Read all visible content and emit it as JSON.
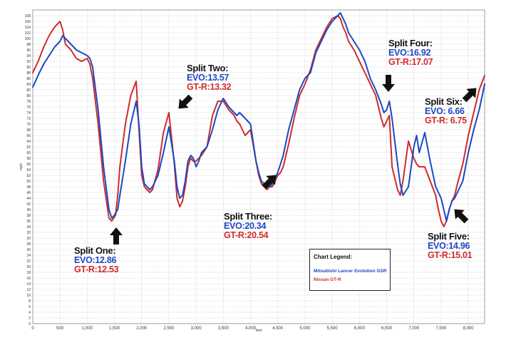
{
  "chart_data": {
    "type": "line",
    "title": "",
    "xlabel": "feet",
    "ylabel": "mph",
    "xlim": [
      0,
      8300
    ],
    "ylim": [
      0,
      110
    ],
    "x_ticks": [
      0,
      500,
      1000,
      1500,
      2000,
      2500,
      3000,
      3500,
      4000,
      4500,
      5000,
      5500,
      6000,
      6500,
      7000,
      7500,
      8000
    ],
    "x_tick_labels": [
      "0",
      "500",
      "1,000",
      "1,500",
      "2,000",
      "2,500",
      "3,000",
      "3,500",
      "4,000",
      "4,500",
      "5,000",
      "5,500",
      "6,000",
      "6,500",
      "7,000",
      "7,500",
      "8,000"
    ],
    "y_ticks": [
      0,
      2,
      4,
      6,
      8,
      10,
      12,
      14,
      16,
      18,
      20,
      22,
      24,
      26,
      28,
      30,
      32,
      34,
      36,
      38,
      40,
      42,
      44,
      46,
      48,
      50,
      52,
      54,
      56,
      58,
      60,
      62,
      64,
      66,
      68,
      70,
      72,
      74,
      76,
      78,
      80,
      82,
      84,
      86,
      88,
      90,
      92,
      94,
      96,
      98,
      100,
      102,
      104,
      106,
      108
    ],
    "grid": true,
    "series": [
      {
        "name": "Mitsubishi Lancer Evolution GSR",
        "color": "#1b48c4",
        "x": [
          0,
          50,
          120,
          200,
          300,
          400,
          500,
          550,
          600,
          700,
          800,
          900,
          1000,
          1050,
          1100,
          1200,
          1300,
          1400,
          1450,
          1500,
          1560,
          1600,
          1700,
          1800,
          1900,
          1950,
          2000,
          2050,
          2100,
          2150,
          2200,
          2300,
          2400,
          2500,
          2600,
          2650,
          2700,
          2750,
          2800,
          2850,
          2900,
          2950,
          3000,
          3050,
          3100,
          3200,
          3300,
          3400,
          3500,
          3600,
          3700,
          3750,
          3800,
          3900,
          4000,
          4100,
          4150,
          4200,
          4300,
          4350,
          4400,
          4450,
          4500,
          4550,
          4600,
          4700,
          4800,
          4900,
          5000,
          5100,
          5200,
          5300,
          5400,
          5500,
          5600,
          5650,
          5700,
          5750,
          5800,
          5900,
          6000,
          6100,
          6200,
          6300,
          6400,
          6450,
          6500,
          6550,
          6600,
          6700,
          6750,
          6800,
          6900,
          7000,
          7050,
          7100,
          7200,
          7300,
          7400,
          7450,
          7500,
          7550,
          7600,
          7650,
          7700,
          7750,
          7800,
          7900,
          8000,
          8100,
          8200,
          8300
        ],
        "y": [
          83,
          85,
          88,
          91,
          94,
          97,
          99,
          101,
          100,
          98,
          96,
          95,
          94,
          93,
          90,
          75,
          55,
          40,
          37,
          38,
          40,
          45,
          57,
          70,
          78,
          70,
          55,
          49,
          48,
          47,
          48,
          52,
          60,
          69,
          57,
          48,
          44,
          45,
          50,
          57,
          59,
          58,
          55,
          57,
          60,
          62,
          68,
          75,
          79,
          76,
          74,
          73,
          74,
          72,
          70,
          57,
          53,
          50,
          48,
          48,
          49,
          51,
          53,
          56,
          59,
          68,
          75,
          82,
          86,
          88,
          95,
          99,
          103,
          106,
          108,
          109,
          107,
          105,
          102,
          99,
          96,
          92,
          86,
          82,
          77,
          74,
          75,
          78,
          72,
          56,
          49,
          45,
          48,
          62,
          66,
          60,
          67,
          57,
          48,
          46,
          44,
          40,
          36,
          40,
          43,
          44,
          46,
          50,
          60,
          68,
          75,
          84
        ]
      },
      {
        "name": "Nissan GT-R",
        "color": "#d12a2a",
        "x": [
          0,
          100,
          200,
          300,
          400,
          500,
          550,
          600,
          700,
          800,
          900,
          1000,
          1050,
          1100,
          1200,
          1300,
          1400,
          1450,
          1520,
          1560,
          1600,
          1700,
          1800,
          1900,
          1950,
          2000,
          2050,
          2100,
          2150,
          2200,
          2300,
          2400,
          2500,
          2600,
          2650,
          2700,
          2750,
          2800,
          2850,
          2900,
          2950,
          3000,
          3050,
          3100,
          3200,
          3300,
          3400,
          3500,
          3600,
          3700,
          3750,
          3800,
          3900,
          4000,
          4100,
          4150,
          4200,
          4300,
          4350,
          4400,
          4450,
          4500,
          4550,
          4600,
          4700,
          4800,
          4900,
          5000,
          5100,
          5200,
          5300,
          5400,
          5500,
          5600,
          5650,
          5700,
          5750,
          5800,
          5900,
          6000,
          6100,
          6200,
          6300,
          6400,
          6450,
          6500,
          6550,
          6600,
          6700,
          6750,
          6800,
          6900,
          7000,
          7050,
          7100,
          7200,
          7300,
          7400,
          7450,
          7500,
          7550,
          7600,
          7650,
          7700,
          7750,
          7800,
          7900,
          8000,
          8100,
          8200,
          8300
        ],
        "y": [
          88,
          92,
          97,
          101,
          104,
          106,
          103,
          98,
          96,
          93,
          92,
          93,
          91,
          86,
          70,
          50,
          37,
          36,
          38,
          45,
          55,
          70,
          80,
          85,
          68,
          52,
          48,
          47,
          46,
          47,
          54,
          67,
          74,
          56,
          44,
          41,
          43,
          48,
          55,
          58,
          57,
          57,
          58,
          59,
          62,
          73,
          78,
          78,
          75,
          73,
          71,
          70,
          66,
          68,
          57,
          52,
          49,
          47,
          48,
          48,
          50,
          52,
          53,
          55,
          63,
          72,
          80,
          84,
          89,
          96,
          100,
          104,
          107,
          108,
          107,
          104,
          102,
          99,
          96,
          92,
          88,
          84,
          80,
          72,
          69,
          71,
          73,
          55,
          47,
          45,
          50,
          64,
          58,
          56,
          55,
          55,
          50,
          45,
          40,
          36,
          34,
          36,
          40,
          43,
          45,
          49,
          56,
          66,
          74,
          82,
          87
        ]
      }
    ],
    "legend": {
      "title": "Chart Legend:",
      "entries": [
        "Mitsubishi Lancer Evolution GSR",
        "Nissan GT-R"
      ],
      "position": "bottom-center"
    },
    "annotations": [
      {
        "id": "split1",
        "title": "Split One:",
        "evo": "EVO:12.86",
        "gtr": "GT-R:12.53",
        "arrow": "up"
      },
      {
        "id": "split2",
        "title": "Split Two:",
        "evo": "EVO:13.57",
        "gtr": "GT-R:13.32",
        "arrow": "down-left"
      },
      {
        "id": "split3",
        "title": "Split Three:",
        "evo": "EVO:20.34",
        "gtr": "GT-R:20.54",
        "arrow": "up-right"
      },
      {
        "id": "split4",
        "title": "Split Four:",
        "evo": "EVO:16.92",
        "gtr": "GT-R:17.07",
        "arrow": "down"
      },
      {
        "id": "split5",
        "title": "Split Five:",
        "evo": "EVO:14.96",
        "gtr": "GT-R:15.01",
        "arrow": "up-left"
      },
      {
        "id": "split6",
        "title": "Split Six:",
        "evo": "EVO: 6.66",
        "gtr": "GT-R: 6.75",
        "arrow": "up-right"
      }
    ]
  }
}
